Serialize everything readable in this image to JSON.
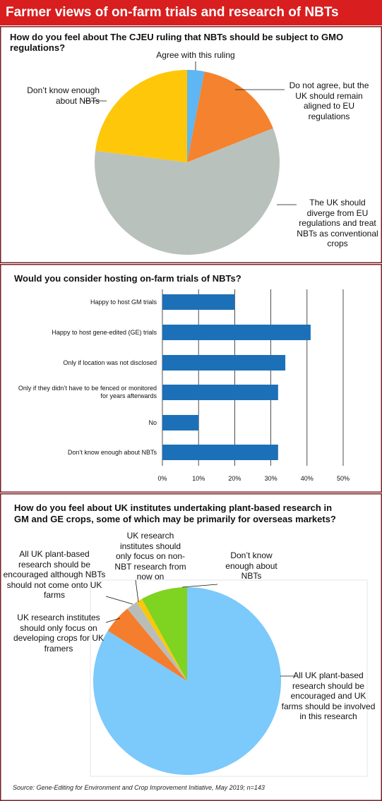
{
  "header": {
    "title": "Farmer views of on-farm trials and research of NBTs"
  },
  "chart_data": [
    {
      "type": "pie",
      "title": "How do you feel about The CJEU ruling that NBTs should be subject to GMO regulations?",
      "categories": [
        "Agree with this ruling",
        "Do not agree, but the UK should remain aligned to EU regulations",
        "The UK should diverge from EU regulations and treat NBTs as conventional crops",
        "Don’t know enough about NBTs"
      ],
      "values": [
        3,
        16,
        58,
        23
      ],
      "colors": [
        "#5eb6f2",
        "#f5822e",
        "#b9c1bd",
        "#fec70a"
      ]
    },
    {
      "type": "bar",
      "orientation": "horizontal",
      "title": "Would you consider hosting on-farm trials of NBTs?",
      "categories": [
        "Happy to host GM trials",
        "Happy to host gene-edited (GE) trials",
        "Only if location was not disclosed",
        "Only if they didn’t have to be fenced or monitored for years afterwards",
        "No",
        "Don’t know enough about NBTs"
      ],
      "values": [
        20,
        41,
        34,
        32,
        10,
        32
      ],
      "color": "#1c70b8",
      "xlim": [
        0,
        50
      ],
      "xticks": [
        {
          "value": 0,
          "label": "0%"
        },
        {
          "value": 10,
          "label": "10%"
        },
        {
          "value": 20,
          "label": "20%"
        },
        {
          "value": 30,
          "label": "30%"
        },
        {
          "value": 40,
          "label": "40%"
        },
        {
          "value": 50,
          "label": "50%"
        }
      ],
      "grid": true
    },
    {
      "type": "pie",
      "title": "How do you feel about UK institutes undertaking plant-based research in GM and GE crops, some of which may be primarily for overseas markets?",
      "categories": [
        "All UK plant-based research should be encouraged and UK farms should be involved in this research",
        "UK research institutes should only focus on developing crops for UK framers",
        "All UK plant-based research should be encouraged although NBTs should not come onto UK farms",
        "UK research institutes should only focus on non-NBT research from now on",
        "Don’t know enough about NBTs"
      ],
      "values": [
        84,
        5,
        2,
        1,
        8
      ],
      "colors": [
        "#7cc9fb",
        "#f57d2e",
        "#b9bdb9",
        "#f9c80a",
        "#7fd321"
      ]
    }
  ],
  "source": "Source: Gene-Editing for Environment and Crop Improvement Initiative, May 2019; n=143"
}
